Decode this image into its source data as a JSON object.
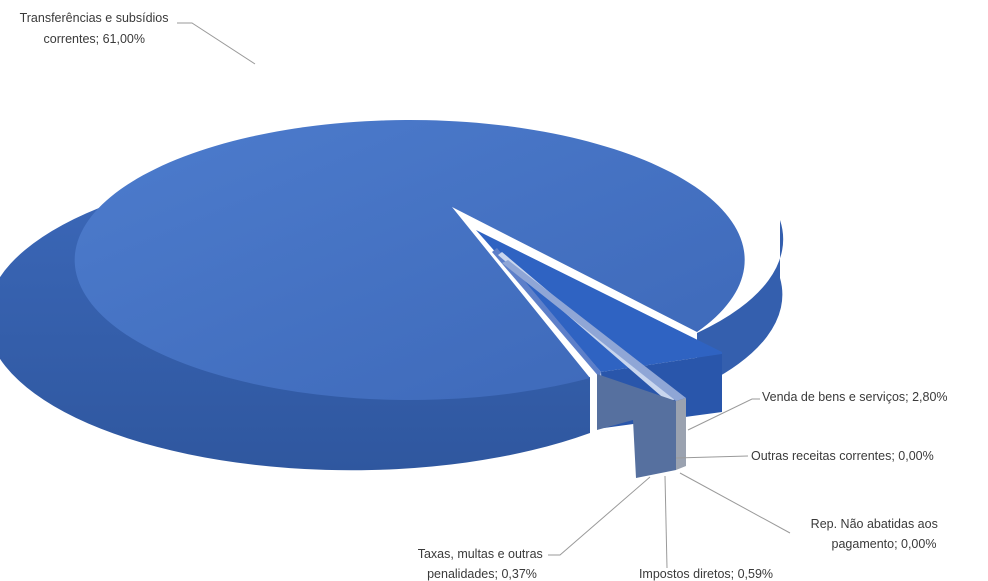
{
  "chart_data": {
    "type": "pie",
    "style": "3d",
    "slices": [
      {
        "id": "transferencias",
        "label_lines": [
          "Transferências e subsídios",
          "correntes; 61,00%"
        ],
        "value": 61.0,
        "color": "#4673c3",
        "exploded": false
      },
      {
        "id": "venda",
        "label_lines": [
          "Venda de bens e serviços; 2,80%"
        ],
        "value": 2.8,
        "color": "#2e62bf",
        "exploded": true
      },
      {
        "id": "outras",
        "label_lines": [
          "Outras receitas correntes; 0,00%"
        ],
        "value": 0.0,
        "color": "#5d7fc9",
        "exploded": true
      },
      {
        "id": "rep",
        "label_lines": [
          "Rep. Não abatidas aos",
          "pagamento; 0,00%"
        ],
        "value": 0.0,
        "color": "#8ea6d8",
        "exploded": true
      },
      {
        "id": "impostos",
        "label_lines": [
          "Impostos diretos; 0,59%"
        ],
        "value": 0.59,
        "color": "#6f8bc7",
        "exploded": true
      },
      {
        "id": "taxas",
        "label_lines": [
          "Taxas, multas e outras",
          "penalidades; 0,37%"
        ],
        "value": 0.37,
        "color": "#b7c8e6",
        "exploded": true
      }
    ]
  }
}
